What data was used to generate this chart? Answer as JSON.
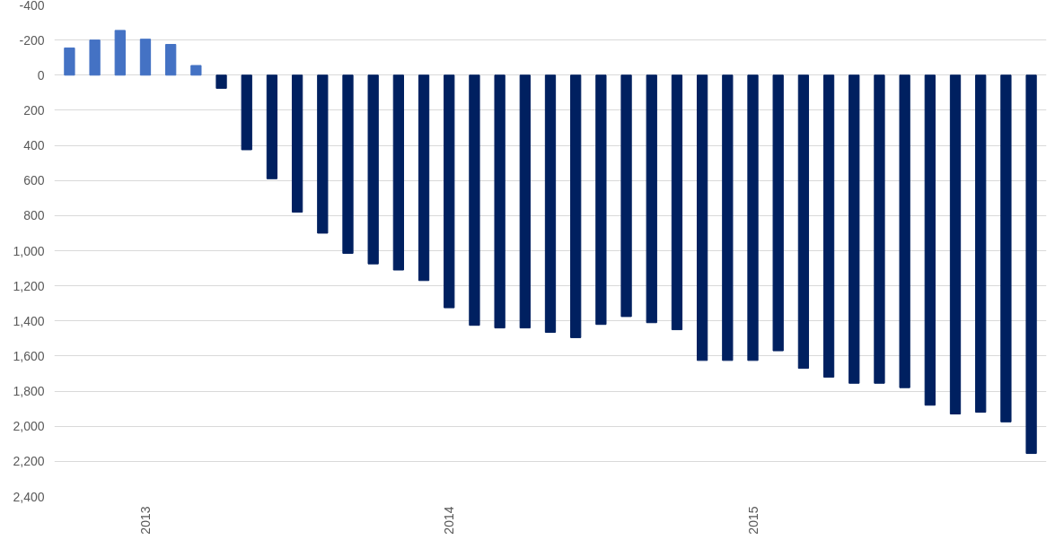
{
  "chart_data": {
    "type": "bar",
    "categories": [
      null,
      null,
      null,
      "2013",
      null,
      null,
      null,
      null,
      null,
      null,
      null,
      null,
      null,
      null,
      null,
      "2014",
      null,
      null,
      null,
      null,
      null,
      null,
      null,
      null,
      null,
      null,
      null,
      "2015",
      null,
      null,
      null,
      null,
      null,
      null,
      null,
      null,
      null,
      null,
      null
    ],
    "values": [
      -155,
      -200,
      -255,
      -205,
      -175,
      -55,
      75,
      425,
      590,
      780,
      900,
      1015,
      1075,
      1110,
      1170,
      1325,
      1425,
      1440,
      1440,
      1465,
      1495,
      1420,
      1375,
      1410,
      1450,
      1625,
      1625,
      1625,
      1570,
      1670,
      1720,
      1755,
      1755,
      1780,
      1880,
      1930,
      1920,
      1975,
      2155
    ],
    "colors": [
      "#4472c4",
      "#4472c4",
      "#4472c4",
      "#4472c4",
      "#4472c4",
      "#4472c4",
      "#002060",
      "#002060",
      "#002060",
      "#002060",
      "#002060",
      "#002060",
      "#002060",
      "#002060",
      "#002060",
      "#002060",
      "#002060",
      "#002060",
      "#002060",
      "#002060",
      "#002060",
      "#002060",
      "#002060",
      "#002060",
      "#002060",
      "#002060",
      "#002060",
      "#002060",
      "#002060",
      "#002060",
      "#002060",
      "#002060",
      "#002060",
      "#002060",
      "#002060",
      "#002060",
      "#002060",
      "#002060",
      "#002060"
    ],
    "ylim": [
      2400,
      -400
    ],
    "yticks": [
      -400,
      -200,
      0,
      200,
      400,
      600,
      800,
      {
        "value": 1000,
        "label": "1,000"
      },
      {
        "value": 1200,
        "label": "1,200"
      },
      {
        "value": 1400,
        "label": "1,400"
      },
      {
        "value": 1600,
        "label": "1,600"
      },
      {
        "value": 1800,
        "label": "1,800"
      },
      {
        "value": 2000,
        "label": "2,000"
      },
      {
        "value": 2200,
        "label": "2,200"
      },
      {
        "value": 2400,
        "label": "2,400"
      }
    ],
    "grid": "y"
  }
}
